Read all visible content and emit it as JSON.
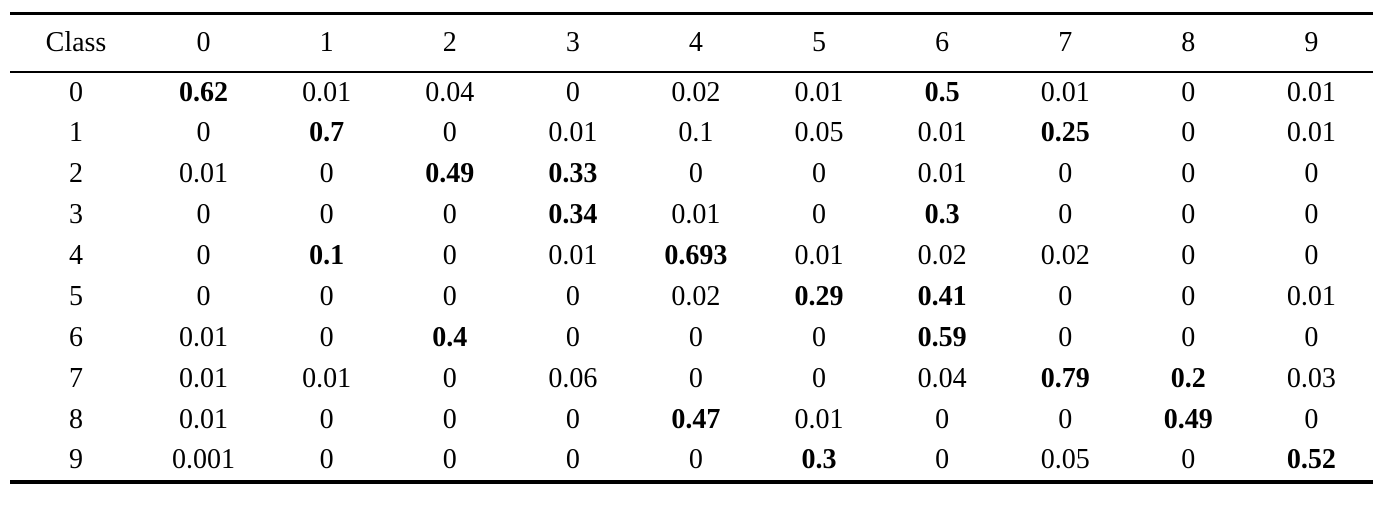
{
  "table": {
    "header": [
      "Class",
      "0",
      "1",
      "2",
      "3",
      "4",
      "5",
      "6",
      "7",
      "8",
      "9"
    ],
    "rows": [
      {
        "class": "0",
        "values": [
          "0.62",
          "0.01",
          "0.04",
          "0",
          "0.02",
          "0.01",
          "0.5",
          "0.01",
          "0",
          "0.01"
        ],
        "bold": [
          0,
          6
        ]
      },
      {
        "class": "1",
        "values": [
          "0",
          "0.7",
          "0",
          "0.01",
          "0.1",
          "0.05",
          "0.01",
          "0.25",
          "0",
          "0.01"
        ],
        "bold": [
          1,
          7
        ]
      },
      {
        "class": "2",
        "values": [
          "0.01",
          "0",
          "0.49",
          "0.33",
          "0",
          "0",
          "0.01",
          "0",
          "0",
          "0"
        ],
        "bold": [
          2,
          3
        ]
      },
      {
        "class": "3",
        "values": [
          "0",
          "0",
          "0",
          "0.34",
          "0.01",
          "0",
          "0.3",
          "0",
          "0",
          "0"
        ],
        "bold": [
          3,
          6
        ]
      },
      {
        "class": "4",
        "values": [
          "0",
          "0.1",
          "0",
          "0.01",
          "0.693",
          "0.01",
          "0.02",
          "0.02",
          "0",
          "0"
        ],
        "bold": [
          1,
          4
        ]
      },
      {
        "class": "5",
        "values": [
          "0",
          "0",
          "0",
          "0",
          "0.02",
          "0.29",
          "0.41",
          "0",
          "0",
          "0.01"
        ],
        "bold": [
          5,
          6
        ]
      },
      {
        "class": "6",
        "values": [
          "0.01",
          "0",
          "0.4",
          "0",
          "0",
          "0",
          "0.59",
          "0",
          "0",
          "0"
        ],
        "bold": [
          2,
          6
        ]
      },
      {
        "class": "7",
        "values": [
          "0.01",
          "0.01",
          "0",
          "0.06",
          "0",
          "0",
          "0.04",
          "0.79",
          "0.2",
          "0.03"
        ],
        "bold": [
          7,
          8
        ]
      },
      {
        "class": "8",
        "values": [
          "0.01",
          "0",
          "0",
          "0",
          "0.47",
          "0.01",
          "0",
          "0",
          "0.49",
          "0"
        ],
        "bold": [
          4,
          8
        ]
      },
      {
        "class": "9",
        "values": [
          "0.001",
          "0",
          "0",
          "0",
          "0",
          "0.3",
          "0",
          "0.05",
          "0",
          "0.52"
        ],
        "bold": [
          5,
          9
        ]
      }
    ]
  }
}
